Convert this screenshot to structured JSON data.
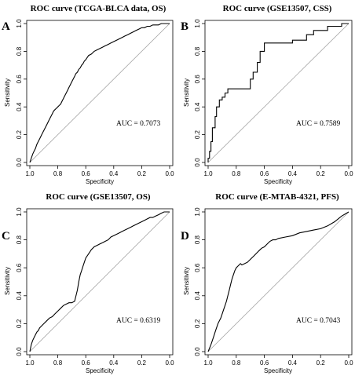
{
  "chart_data": [
    {
      "type": "line",
      "panel_letter": "A",
      "title": "ROC curve (TCGA-BLCA data, OS)",
      "xlabel": "Specificity",
      "ylabel": "Sensitivity",
      "xlim": [
        1.0,
        0.0
      ],
      "ylim": [
        0.0,
        1.0
      ],
      "xticks": [
        "1.0",
        "0.8",
        "0.6",
        "0.4",
        "0.2",
        "0.0"
      ],
      "yticks": [
        "0.0",
        "0.2",
        "0.4",
        "0.6",
        "0.8",
        "1.0"
      ],
      "auc_label": "AUC = 0.7073",
      "diagonal": true,
      "series": [
        {
          "specificity": [
            1.0,
            0.99,
            0.98,
            0.97,
            0.96,
            0.95,
            0.94,
            0.93,
            0.92,
            0.91,
            0.9,
            0.89,
            0.88,
            0.87,
            0.86,
            0.85,
            0.84,
            0.83,
            0.82,
            0.81,
            0.8,
            0.79,
            0.78,
            0.77,
            0.76,
            0.75,
            0.74,
            0.73,
            0.72,
            0.71,
            0.7,
            0.69,
            0.68,
            0.67,
            0.66,
            0.65,
            0.64,
            0.63,
            0.62,
            0.61,
            0.6,
            0.58,
            0.56,
            0.54,
            0.52,
            0.5,
            0.48,
            0.46,
            0.44,
            0.42,
            0.4,
            0.38,
            0.36,
            0.34,
            0.32,
            0.3,
            0.28,
            0.26,
            0.24,
            0.22,
            0.2,
            0.18,
            0.16,
            0.14,
            0.12,
            0.1,
            0.08,
            0.06,
            0.04,
            0.02,
            0.0
          ],
          "sensitivity": [
            0.0,
            0.03,
            0.06,
            0.08,
            0.1,
            0.13,
            0.15,
            0.17,
            0.19,
            0.21,
            0.23,
            0.25,
            0.27,
            0.29,
            0.31,
            0.33,
            0.35,
            0.37,
            0.38,
            0.39,
            0.4,
            0.41,
            0.42,
            0.44,
            0.46,
            0.48,
            0.5,
            0.52,
            0.54,
            0.56,
            0.58,
            0.6,
            0.62,
            0.64,
            0.65,
            0.67,
            0.68,
            0.7,
            0.71,
            0.73,
            0.74,
            0.77,
            0.78,
            0.8,
            0.81,
            0.82,
            0.83,
            0.84,
            0.85,
            0.86,
            0.87,
            0.88,
            0.89,
            0.9,
            0.91,
            0.92,
            0.93,
            0.94,
            0.95,
            0.96,
            0.97,
            0.97,
            0.98,
            0.98,
            0.99,
            0.99,
            0.99,
            1.0,
            1.0,
            1.0,
            1.0
          ]
        }
      ]
    },
    {
      "type": "line",
      "panel_letter": "B",
      "title": "ROC curve (GSE13507, CSS)",
      "xlabel": "Specificity",
      "ylabel": "Sensitivity",
      "xlim": [
        1.0,
        0.0
      ],
      "ylim": [
        0.0,
        1.0
      ],
      "xticks": [
        "1.0",
        "0.8",
        "0.6",
        "0.4",
        "0.2",
        "0.0"
      ],
      "yticks": [
        "0.0",
        "0.2",
        "0.4",
        "0.6",
        "0.8",
        "1.0"
      ],
      "auc_label": "AUC = 0.7589",
      "diagonal": true,
      "series": [
        {
          "specificity": [
            1.0,
            1.0,
            0.99,
            0.99,
            0.98,
            0.98,
            0.97,
            0.97,
            0.95,
            0.95,
            0.94,
            0.94,
            0.92,
            0.92,
            0.9,
            0.9,
            0.88,
            0.88,
            0.86,
            0.86,
            0.7,
            0.7,
            0.68,
            0.68,
            0.65,
            0.65,
            0.63,
            0.63,
            0.6,
            0.6,
            0.4,
            0.4,
            0.3,
            0.3,
            0.25,
            0.25,
            0.15,
            0.15,
            0.05,
            0.05,
            0.0
          ],
          "sensitivity": [
            0.0,
            0.03,
            0.03,
            0.08,
            0.08,
            0.15,
            0.15,
            0.25,
            0.25,
            0.33,
            0.33,
            0.4,
            0.4,
            0.45,
            0.45,
            0.47,
            0.47,
            0.5,
            0.5,
            0.53,
            0.53,
            0.6,
            0.6,
            0.65,
            0.65,
            0.72,
            0.72,
            0.8,
            0.8,
            0.86,
            0.86,
            0.88,
            0.88,
            0.92,
            0.92,
            0.95,
            0.95,
            0.98,
            0.98,
            1.0,
            1.0
          ]
        }
      ]
    },
    {
      "type": "line",
      "panel_letter": "C",
      "title": "ROC curve (GSE13507, OS)",
      "xlabel": "Specificity",
      "ylabel": "Sensitivity",
      "xlim": [
        1.0,
        0.0
      ],
      "ylim": [
        0.0,
        1.0
      ],
      "xticks": [
        "1.0",
        "0.8",
        "0.6",
        "0.4",
        "0.2",
        "0.0"
      ],
      "yticks": [
        "0.0",
        "0.2",
        "0.4",
        "0.6",
        "0.8",
        "1.0"
      ],
      "auc_label": "AUC = 0.6319",
      "diagonal": true,
      "series": [
        {
          "specificity": [
            1.0,
            0.99,
            0.98,
            0.97,
            0.96,
            0.95,
            0.94,
            0.93,
            0.92,
            0.9,
            0.88,
            0.86,
            0.84,
            0.82,
            0.8,
            0.78,
            0.76,
            0.74,
            0.72,
            0.7,
            0.68,
            0.66,
            0.65,
            0.64,
            0.63,
            0.62,
            0.61,
            0.6,
            0.58,
            0.56,
            0.54,
            0.52,
            0.5,
            0.48,
            0.46,
            0.44,
            0.42,
            0.4,
            0.38,
            0.36,
            0.34,
            0.32,
            0.3,
            0.28,
            0.26,
            0.24,
            0.22,
            0.2,
            0.18,
            0.16,
            0.14,
            0.12,
            0.1,
            0.08,
            0.06,
            0.04,
            0.02,
            0.0
          ],
          "sensitivity": [
            0.0,
            0.05,
            0.08,
            0.1,
            0.12,
            0.14,
            0.15,
            0.17,
            0.18,
            0.2,
            0.22,
            0.24,
            0.25,
            0.27,
            0.29,
            0.31,
            0.33,
            0.34,
            0.35,
            0.35,
            0.36,
            0.44,
            0.5,
            0.55,
            0.58,
            0.61,
            0.64,
            0.67,
            0.7,
            0.73,
            0.75,
            0.76,
            0.77,
            0.78,
            0.79,
            0.8,
            0.82,
            0.83,
            0.84,
            0.85,
            0.86,
            0.87,
            0.88,
            0.89,
            0.9,
            0.91,
            0.92,
            0.93,
            0.94,
            0.95,
            0.96,
            0.96,
            0.97,
            0.98,
            0.99,
            1.0,
            1.0,
            1.0
          ]
        }
      ]
    },
    {
      "type": "line",
      "panel_letter": "D",
      "title": "ROC curve (E-MTAB-4321, PFS)",
      "xlabel": "Specificity",
      "ylabel": "Sensitivity",
      "xlim": [
        1.0,
        0.0
      ],
      "ylim": [
        0.0,
        1.0
      ],
      "xticks": [
        "1.0",
        "0.8",
        "0.6",
        "0.4",
        "0.2",
        "0.0"
      ],
      "yticks": [
        "0.0",
        "0.2",
        "0.4",
        "0.6",
        "0.8",
        "1.0"
      ],
      "auc_label": "AUC = 0.7043",
      "diagonal": true,
      "series": [
        {
          "specificity": [
            1.0,
            0.98,
            0.97,
            0.96,
            0.95,
            0.94,
            0.93,
            0.92,
            0.91,
            0.9,
            0.89,
            0.88,
            0.87,
            0.86,
            0.85,
            0.84,
            0.83,
            0.82,
            0.81,
            0.8,
            0.79,
            0.78,
            0.77,
            0.76,
            0.74,
            0.72,
            0.7,
            0.68,
            0.66,
            0.64,
            0.62,
            0.6,
            0.58,
            0.56,
            0.54,
            0.52,
            0.5,
            0.45,
            0.4,
            0.35,
            0.3,
            0.25,
            0.2,
            0.15,
            0.1,
            0.05,
            0.0
          ],
          "sensitivity": [
            0.0,
            0.05,
            0.08,
            0.11,
            0.14,
            0.17,
            0.2,
            0.22,
            0.24,
            0.27,
            0.3,
            0.33,
            0.36,
            0.4,
            0.44,
            0.48,
            0.52,
            0.55,
            0.58,
            0.6,
            0.61,
            0.62,
            0.63,
            0.62,
            0.63,
            0.64,
            0.66,
            0.68,
            0.7,
            0.72,
            0.74,
            0.75,
            0.77,
            0.79,
            0.8,
            0.8,
            0.81,
            0.82,
            0.83,
            0.85,
            0.86,
            0.87,
            0.88,
            0.9,
            0.93,
            0.97,
            1.0
          ]
        }
      ]
    }
  ]
}
